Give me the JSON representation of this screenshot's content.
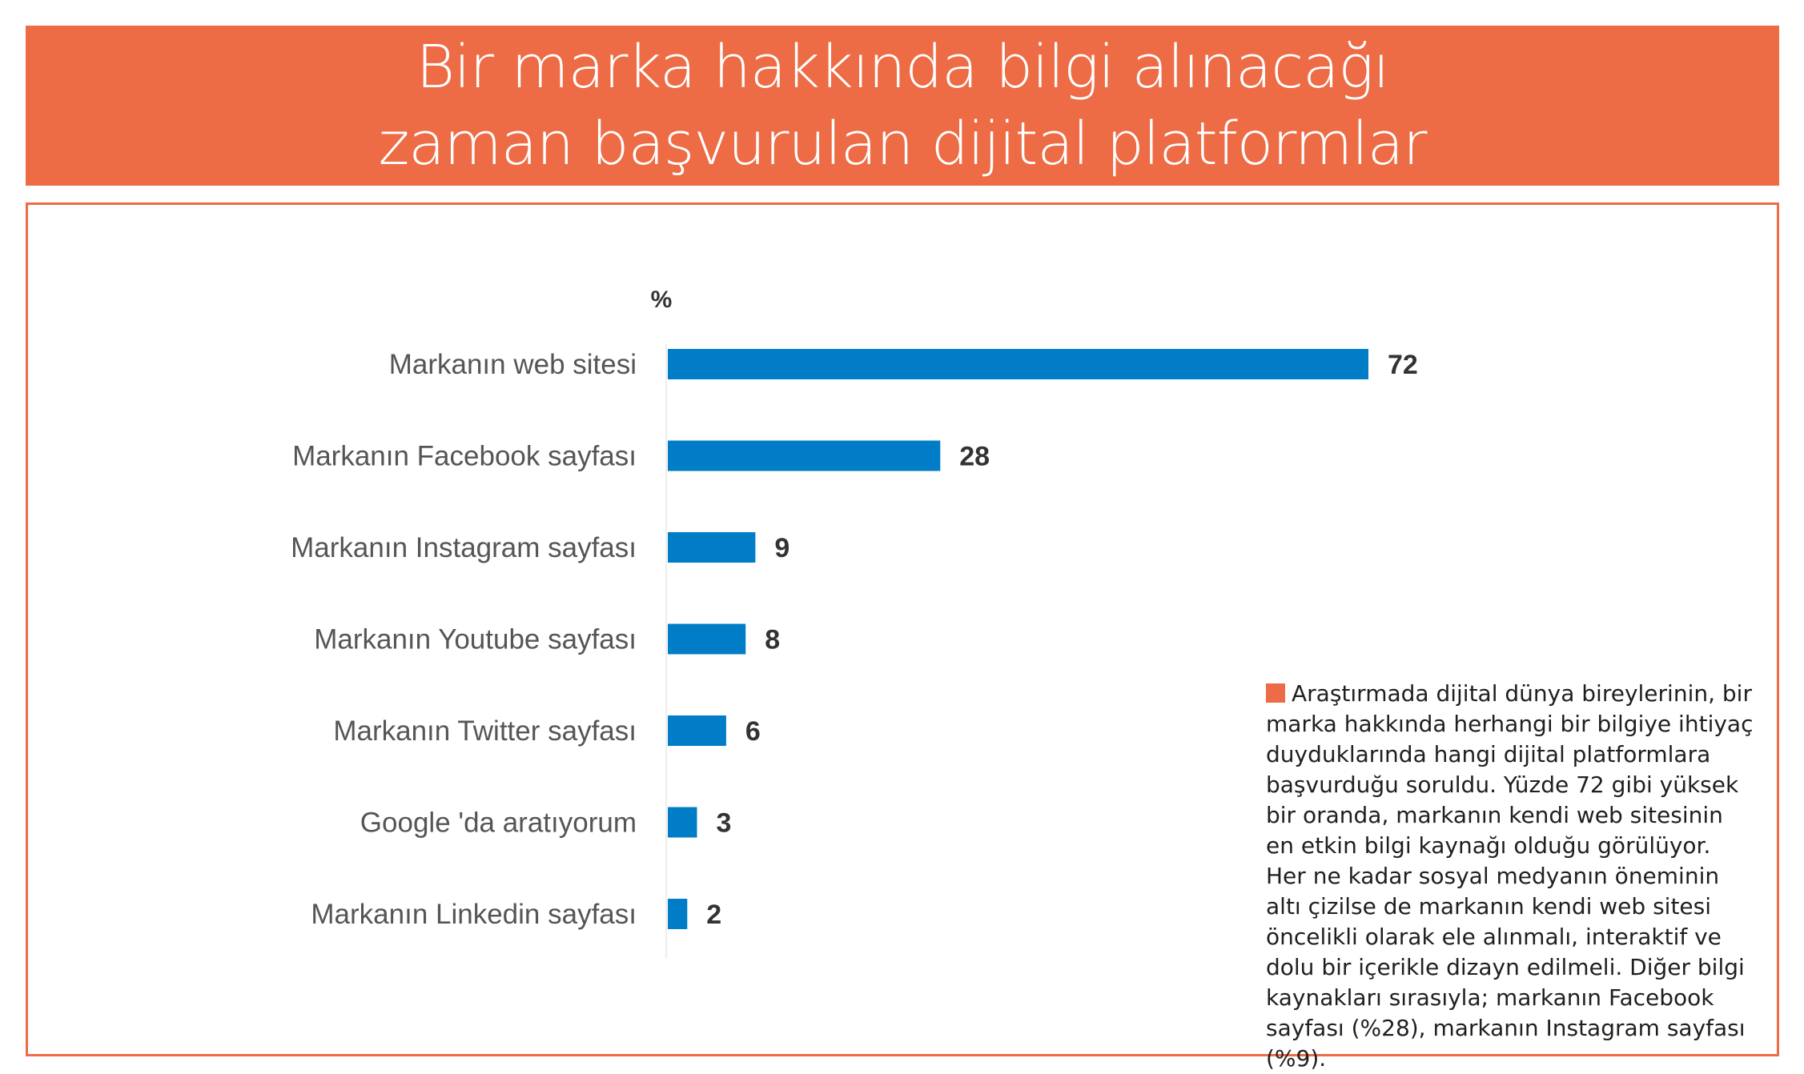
{
  "title": {
    "line1": "Bir marka hakkında bilgi alınacağı",
    "line2": "zaman başvurulan dijital platformlar"
  },
  "chart_data": {
    "type": "bar",
    "orientation": "horizontal",
    "unit_label": "%",
    "categories": [
      "Markanın web sitesi",
      "Markanın Facebook sayfası",
      "Markanın Instagram sayfası",
      "Markanın Youtube sayfası",
      "Markanın Twitter sayfası",
      "Google 'da aratıyorum",
      "Markanın Linkedin sayfası"
    ],
    "values": [
      72,
      28,
      9,
      8,
      6,
      3,
      2
    ],
    "data_labels": [
      "72",
      "28",
      "9",
      "8",
      "6",
      "3",
      "2"
    ],
    "bar_color": "#007DC6",
    "xlim": [
      0,
      72
    ],
    "grid": false,
    "legend": "none"
  },
  "note": {
    "text": "Araştırmada dijital dünya bireylerinin, bir marka hakkında herhangi bir bilgiye ihtiyaç duyduklarında hangi dijital platformlara başvurduğu soruldu. Yüzde 72 gibi yüksek bir oranda, markanın kendi web sitesinin en etkin bilgi kaynağı olduğu görülüyor. Her ne kadar sosyal medyanın öneminin altı çizilse de markanın kendi web sitesi öncelikli olarak ele alınmalı, interaktif ve dolu bir içerikle dizayn edilmeli. Diğer bilgi kaynakları sırasıyla; markanın Facebook sayfası (%28), markanın Instagram sayfası (%9)."
  },
  "colors": {
    "accent": "#ED6B45",
    "bar": "#007DC6"
  }
}
